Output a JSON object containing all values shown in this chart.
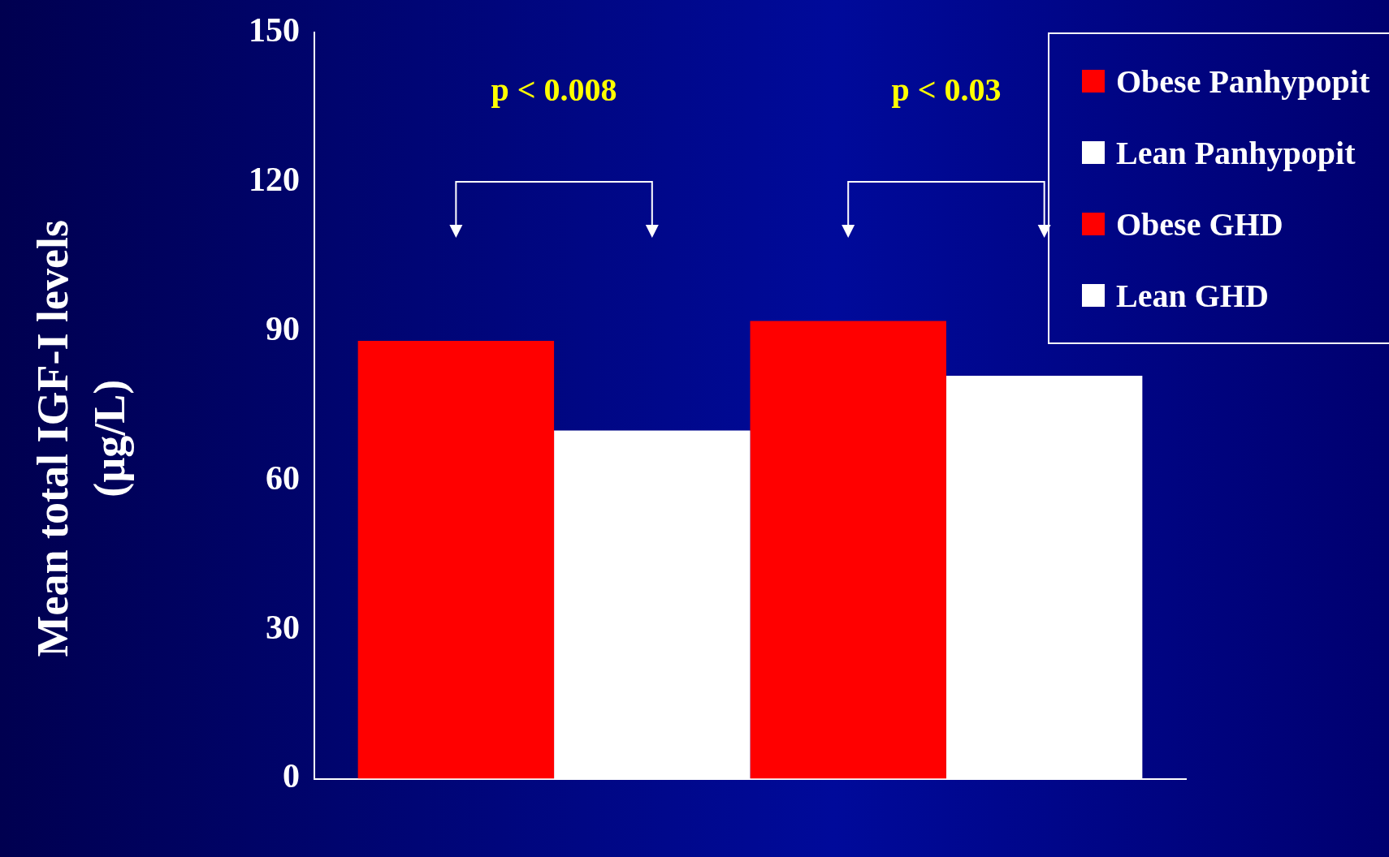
{
  "chart_data": {
    "type": "bar",
    "ylabel": "Mean total IGF-I levels (µg/L)",
    "categories": [
      null
    ],
    "series": [
      {
        "name": "Obese Panhypopit",
        "color": "#ff0000",
        "values": [
          88
        ]
      },
      {
        "name": "Lean Panhypopit",
        "color": "#ffffff",
        "values": [
          70
        ]
      },
      {
        "name": "Obese GHD",
        "color": "#ff0000",
        "values": [
          92
        ]
      },
      {
        "name": "Lean GHD",
        "color": "#ffffff",
        "values": [
          81
        ]
      }
    ],
    "ylim": [
      0,
      150
    ],
    "yticks": [
      0,
      30,
      60,
      90,
      120,
      150
    ],
    "grid": false,
    "legend": "top right",
    "annotations": [
      "p < 0.008",
      "p < 0.03"
    ]
  }
}
